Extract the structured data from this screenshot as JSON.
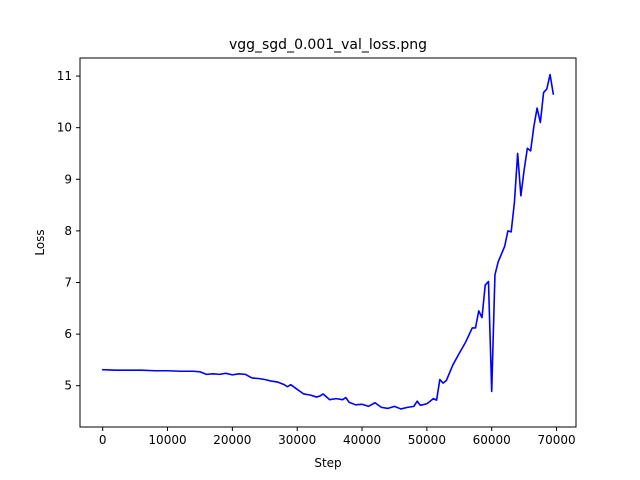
{
  "chart_data": {
    "type": "line",
    "title": "vgg_sgd_0.001_val_loss.png",
    "xlabel": "Step",
    "ylabel": "Loss",
    "xlim": [
      -3500,
      73000
    ],
    "ylim": [
      4.2,
      11.35
    ],
    "xticks": [
      0,
      10000,
      20000,
      30000,
      40000,
      50000,
      60000,
      70000
    ],
    "yticks": [
      5,
      6,
      7,
      8,
      9,
      10,
      11
    ],
    "grid": false,
    "line_color": "#0000ff",
    "series": [
      {
        "x": [
          0,
          2000,
          4000,
          6000,
          8000,
          10000,
          12000,
          13000,
          14000,
          15000,
          16000,
          17000,
          18000,
          19000,
          20000,
          21000,
          22000,
          23000,
          24000,
          25000,
          26000,
          27000,
          28000,
          28500,
          29000,
          30000,
          31000,
          32000,
          33000,
          33500,
          34000,
          35000,
          36000,
          37000,
          37500,
          38000,
          39000,
          40000,
          41000,
          42000,
          43000,
          44000,
          45000,
          46000,
          47000,
          48000,
          48500,
          49000,
          50000,
          51000,
          51500,
          52000,
          52500,
          53000,
          54000,
          55000,
          56000,
          57000,
          57500,
          58000,
          58500,
          59000,
          59500,
          60000,
          60500,
          61000,
          62000,
          62500,
          63000,
          63500,
          64000,
          64500,
          65000,
          65500,
          66000,
          66500,
          67000,
          67500,
          68000,
          68500,
          69000,
          69500
        ],
        "y": [
          5.31,
          5.3,
          5.3,
          5.3,
          5.29,
          5.29,
          5.28,
          5.28,
          5.28,
          5.27,
          5.22,
          5.23,
          5.22,
          5.24,
          5.21,
          5.23,
          5.22,
          5.15,
          5.14,
          5.12,
          5.09,
          5.07,
          5.02,
          4.98,
          5.02,
          4.93,
          4.84,
          4.82,
          4.78,
          4.8,
          4.84,
          4.73,
          4.75,
          4.73,
          4.77,
          4.68,
          4.63,
          4.64,
          4.6,
          4.67,
          4.58,
          4.56,
          4.6,
          4.55,
          4.58,
          4.6,
          4.7,
          4.62,
          4.65,
          4.75,
          4.72,
          5.12,
          5.05,
          5.1,
          5.4,
          5.63,
          5.85,
          6.12,
          6.12,
          6.45,
          6.32,
          6.95,
          7.02,
          4.89,
          7.15,
          7.4,
          7.7,
          8.0,
          7.98,
          8.55,
          9.5,
          8.68,
          9.18,
          9.6,
          9.55,
          10.02,
          10.38,
          10.1,
          10.68,
          10.75,
          11.03,
          10.65
        ]
      }
    ]
  }
}
